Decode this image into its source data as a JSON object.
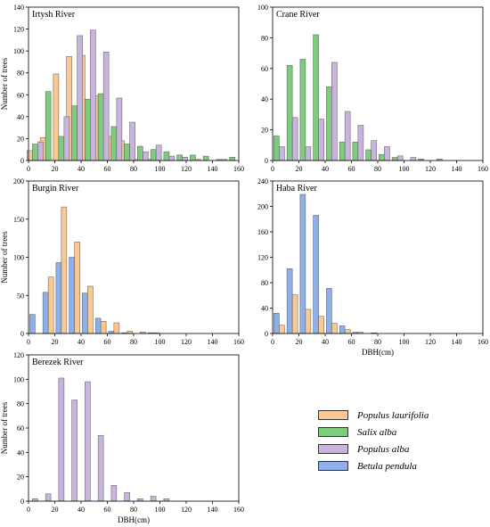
{
  "colors": {
    "Populus laurifolia": "#fcc891",
    "Salix alba": "#7fcc7f",
    "Populus alba": "#c9b4dd",
    "Betula pendula": "#8db0ea"
  },
  "legend": {
    "items": [
      {
        "name": "Populus laurifolia",
        "color": "#fcc891"
      },
      {
        "name": "Salix alba",
        "color": "#7fcc7f"
      },
      {
        "name": "Populus alba",
        "color": "#c9b4dd"
      },
      {
        "name": "Betula pendula",
        "color": "#8db0ea"
      }
    ]
  },
  "chart_data": [
    {
      "type": "bar",
      "title": "Irtysh River",
      "ylabel": "Number of trees",
      "xlabel": "",
      "xlim": [
        0,
        160
      ],
      "ylim": [
        0,
        140
      ],
      "xticks": [
        0,
        20,
        40,
        60,
        80,
        100,
        120,
        140,
        160
      ],
      "yticks": [
        0,
        20,
        40,
        60,
        80,
        100,
        120,
        140
      ],
      "series": [
        {
          "name": "Populus laurifolia",
          "x": [
            5,
            15,
            25,
            35,
            45,
            55,
            65,
            75,
            85,
            95
          ],
          "values": [
            9,
            21,
            79,
            95,
            96,
            59,
            22,
            18,
            1,
            1
          ]
        },
        {
          "name": "Salix alba",
          "x": [
            5,
            15,
            25,
            35,
            45,
            55,
            65,
            75,
            85,
            95,
            105,
            115,
            125,
            135,
            145,
            155
          ],
          "values": [
            15,
            63,
            22,
            50,
            56,
            61,
            31,
            15,
            13,
            10,
            8,
            5,
            5,
            4,
            1,
            3
          ]
        },
        {
          "name": "Populus alba",
          "x": [
            5,
            15,
            25,
            35,
            45,
            55,
            65,
            75,
            85,
            95,
            105,
            115,
            125,
            135,
            145
          ],
          "values": [
            17,
            0,
            40,
            114,
            119,
            99,
            57,
            35,
            8,
            14,
            4,
            3,
            1,
            0,
            1
          ]
        }
      ]
    },
    {
      "type": "bar",
      "title": "Crane River",
      "ylabel": "",
      "xlabel": "",
      "xlim": [
        0,
        160
      ],
      "ylim": [
        0,
        100
      ],
      "xticks": [
        0,
        20,
        40,
        60,
        80,
        100,
        120,
        140,
        160
      ],
      "yticks": [
        0,
        20,
        40,
        60,
        80,
        100
      ],
      "series": [
        {
          "name": "Salix alba",
          "x": [
            5,
            15,
            25,
            35,
            45,
            55,
            65,
            75,
            85,
            95,
            105,
            115,
            125
          ],
          "values": [
            16,
            62,
            66,
            82,
            48,
            12,
            12,
            7,
            4,
            2,
            0,
            1,
            0
          ]
        },
        {
          "name": "Populus alba",
          "x": [
            5,
            15,
            25,
            35,
            45,
            55,
            65,
            75,
            85,
            95,
            105,
            115,
            125
          ],
          "values": [
            9,
            28,
            9,
            27,
            64,
            32,
            23,
            13,
            9,
            3,
            2,
            0,
            1
          ]
        }
      ]
    },
    {
      "type": "bar",
      "title": "Burgin River",
      "ylabel": "Number of trees",
      "xlabel": "",
      "xlim": [
        0,
        160
      ],
      "ylim": [
        0,
        200
      ],
      "xticks": [
        0,
        20,
        40,
        60,
        80,
        100,
        120,
        140,
        160
      ],
      "yticks": [
        0,
        50,
        100,
        150,
        200
      ],
      "series": [
        {
          "name": "Betula pendula",
          "x": [
            5,
            15,
            25,
            35,
            45,
            55,
            65,
            75,
            85,
            95
          ],
          "values": [
            25,
            54,
            93,
            100,
            53,
            20,
            3,
            1,
            0,
            1
          ]
        },
        {
          "name": "Populus laurifolia",
          "x": [
            5,
            15,
            25,
            35,
            45,
            55,
            65,
            75,
            85,
            95
          ],
          "values": [
            0,
            74,
            166,
            120,
            62,
            16,
            14,
            3,
            2,
            1
          ]
        }
      ]
    },
    {
      "type": "bar",
      "title": "Haba River",
      "ylabel": "",
      "xlabel": "DBH(cm)",
      "xlim": [
        0,
        160
      ],
      "ylim": [
        0,
        240
      ],
      "xticks": [
        0,
        20,
        40,
        60,
        80,
        100,
        120,
        140,
        160
      ],
      "yticks": [
        0,
        40,
        80,
        120,
        160,
        200,
        240
      ],
      "series": [
        {
          "name": "Betula pendula",
          "x": [
            5,
            15,
            25,
            35,
            45,
            55,
            65,
            75
          ],
          "values": [
            32,
            102,
            219,
            186,
            71,
            12,
            2,
            0
          ]
        },
        {
          "name": "Populus laurifolia",
          "x": [
            5,
            15,
            25,
            35,
            45,
            55,
            65,
            75
          ],
          "values": [
            13,
            61,
            38,
            27,
            16,
            6,
            2,
            1
          ]
        }
      ]
    },
    {
      "type": "bar",
      "title": "Berezek River",
      "ylabel": "Number of trees",
      "xlabel": "DBH(cm)",
      "xlim": [
        0,
        160
      ],
      "ylim": [
        0,
        120
      ],
      "xticks": [
        0,
        20,
        40,
        60,
        80,
        100,
        120,
        140,
        160
      ],
      "yticks": [
        0,
        20,
        40,
        60,
        80,
        100,
        120
      ],
      "series": [
        {
          "name": "Populus alba",
          "x": [
            5,
            15,
            25,
            35,
            45,
            55,
            65,
            75,
            85,
            95,
            105
          ],
          "values": [
            2,
            6,
            101,
            83,
            98,
            54,
            13,
            7,
            2,
            4,
            2
          ]
        }
      ]
    }
  ]
}
